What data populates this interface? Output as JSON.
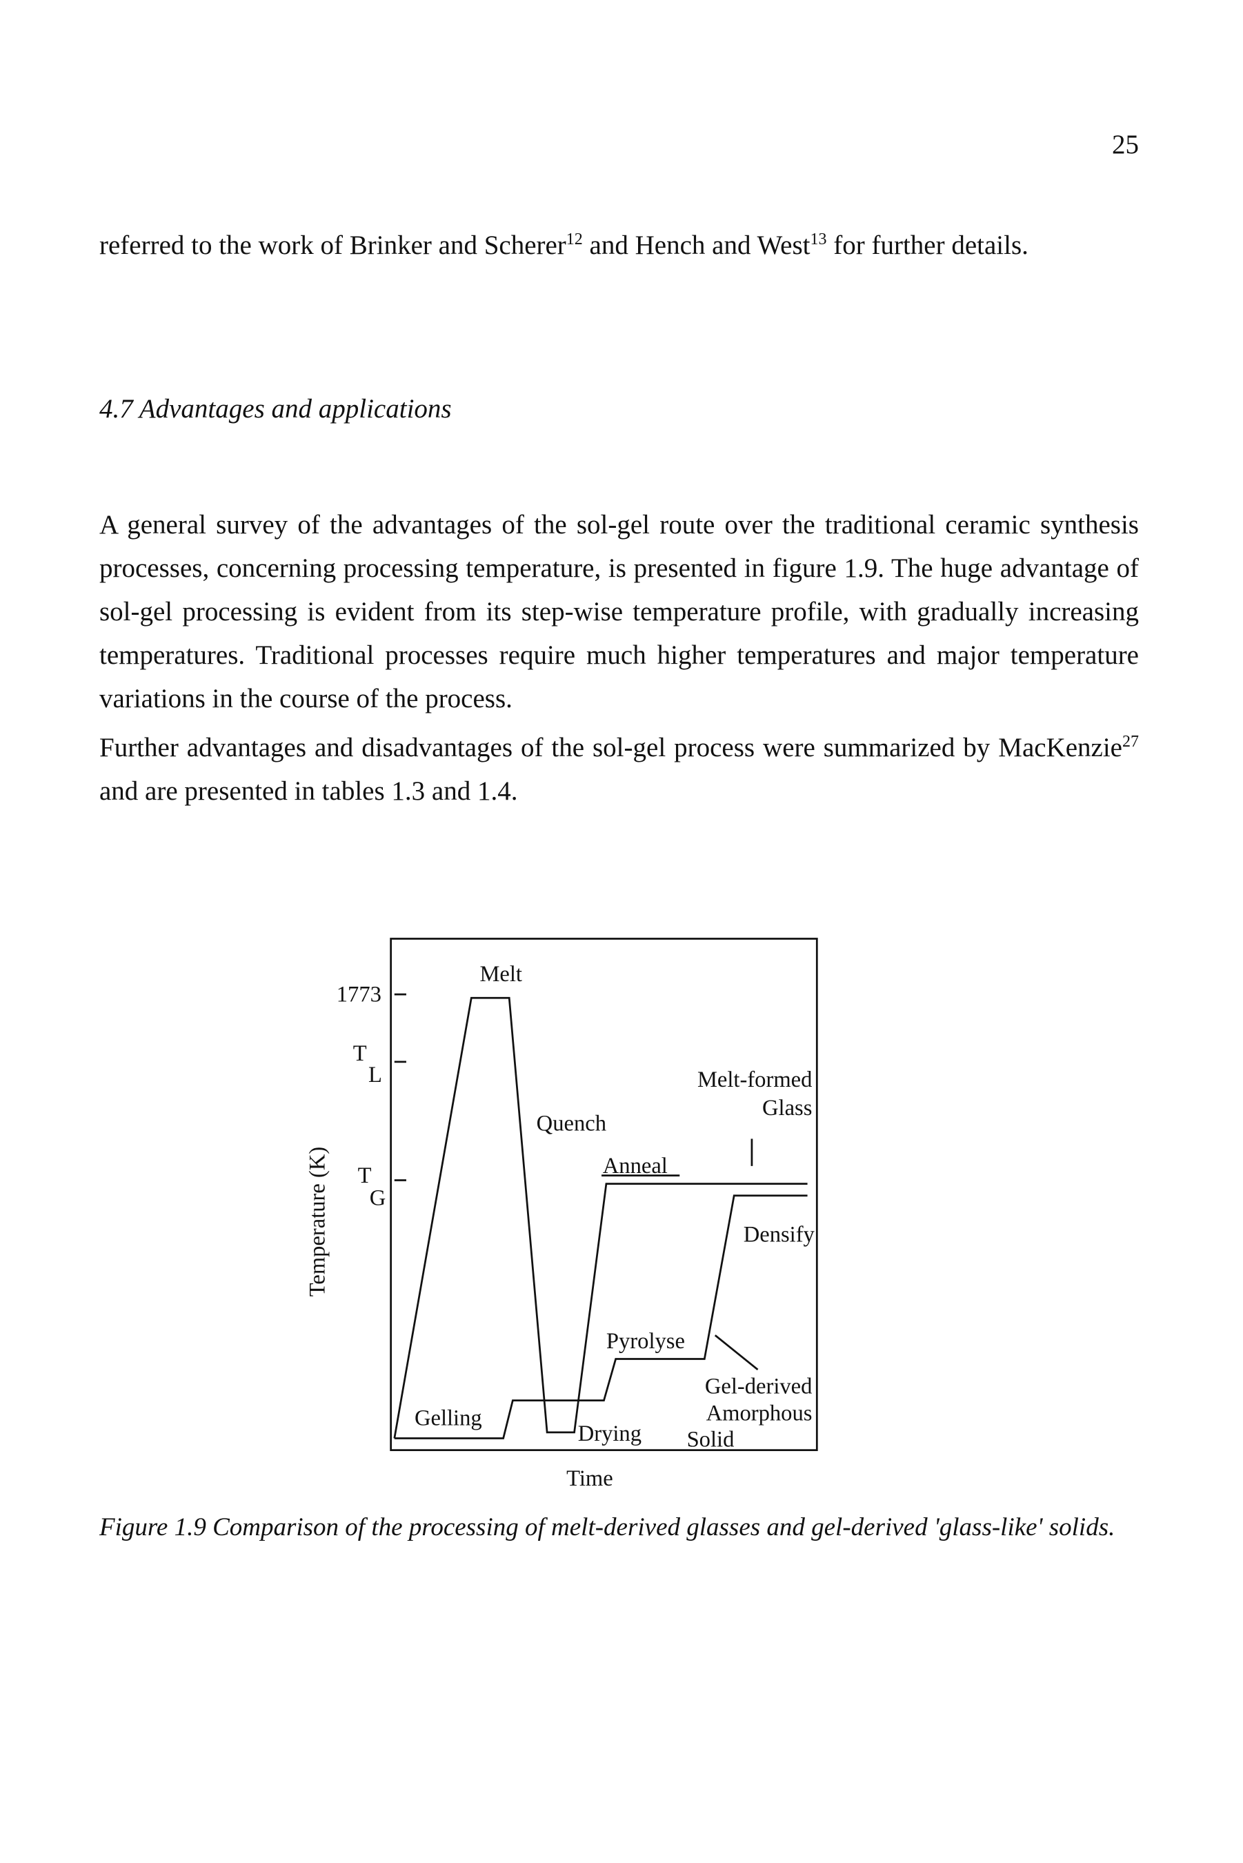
{
  "page_number": "25",
  "paragraph_1": [
    "referred to the work of Brinker and Scherer",
    "12",
    " and Hench and West",
    "13",
    " for further details."
  ],
  "section_heading": "4.7 Advantages and applications",
  "paragraph_2": [
    "A general survey of the advantages of the sol-gel route over the traditional ceramic synthesis processes, concerning processing temperature, is presented in figure 1.9. The huge advantage of sol-gel processing is evident from its step-wise temperature profile, with gradually increasing temperatures. Traditional processes require much higher temperatures and major temperature variations in the course of the process."
  ],
  "paragraph_3": [
    "Further advantages and disadvantages of the sol-gel process were summarized by MacKenzie",
    "27",
    " and are presented in tables 1.3 and 1.4."
  ],
  "figure": {
    "y_axis_label": "Temperature (K)",
    "x_axis_label": "Time",
    "tick_1773": "1773",
    "tick_tl": [
      "T",
      "L"
    ],
    "tick_tg": [
      "T",
      "G"
    ],
    "labels": {
      "melt": "Melt",
      "quench": "Quench",
      "anneal": "Anneal",
      "melt_formed_glass": [
        "Melt-formed",
        "Glass"
      ],
      "densify": "Densify",
      "pyrolyse": "Pyrolyse",
      "gel_derived_solid": [
        "Gel-derived",
        "Amorphous",
        "Solid"
      ],
      "gelling": "Gelling",
      "drying": "Drying"
    },
    "caption": "Figure 1.9 Comparison of the processing of melt-derived glasses and gel-derived 'glass-like' solids."
  }
}
